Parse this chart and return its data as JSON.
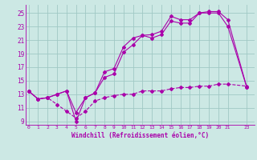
{
  "xlabel": "Windchill (Refroidissement éolien,°C)",
  "bg_color": "#cce8e4",
  "grid_color": "#a0c8c4",
  "line_color": "#aa00aa",
  "x_values": [
    0,
    1,
    2,
    3,
    4,
    5,
    6,
    7,
    8,
    9,
    10,
    11,
    12,
    13,
    14,
    15,
    16,
    17,
    18,
    19,
    20,
    21,
    23
  ],
  "line1": [
    13.5,
    12.3,
    12.5,
    13.0,
    13.5,
    9.0,
    12.5,
    13.2,
    15.5,
    16.0,
    19.2,
    20.3,
    21.7,
    21.3,
    21.8,
    23.8,
    23.5,
    23.5,
    25.0,
    25.0,
    25.0,
    23.0,
    14.0
  ],
  "line2": [
    13.5,
    12.3,
    12.5,
    13.0,
    13.5,
    10.3,
    12.5,
    13.2,
    16.3,
    16.8,
    20.0,
    21.3,
    21.7,
    21.8,
    22.3,
    24.5,
    24.0,
    24.0,
    25.0,
    25.2,
    25.2,
    24.0,
    14.0
  ],
  "line3": [
    13.5,
    12.3,
    12.5,
    11.5,
    10.5,
    9.5,
    10.5,
    12.0,
    12.5,
    12.8,
    13.0,
    13.0,
    13.5,
    13.5,
    13.5,
    13.8,
    14.0,
    14.0,
    14.2,
    14.2,
    14.5,
    14.5,
    14.2
  ],
  "ylim": [
    8.5,
    26.2
  ],
  "xlim": [
    -0.3,
    23.8
  ],
  "yticks": [
    9,
    11,
    13,
    15,
    17,
    19,
    21,
    23,
    25
  ],
  "xticks": [
    0,
    1,
    2,
    3,
    4,
    5,
    6,
    7,
    8,
    9,
    10,
    11,
    12,
    13,
    14,
    15,
    16,
    17,
    18,
    19,
    20,
    21,
    23
  ]
}
